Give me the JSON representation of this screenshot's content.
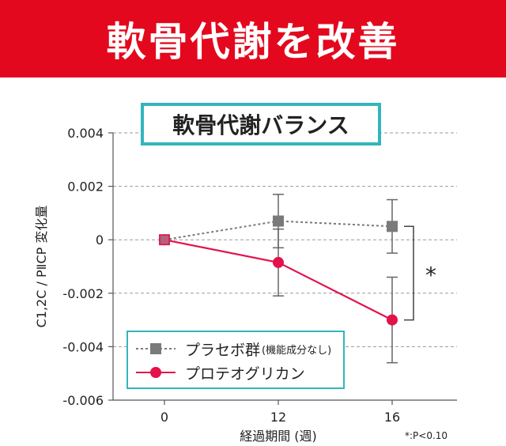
{
  "header": {
    "title": "軟骨代謝を改善"
  },
  "chart_data": {
    "type": "line",
    "title": "軟骨代謝バランス",
    "xlabel": "経過期間 (週)",
    "ylabel": "C1,2C / PⅡCP 変化量",
    "x": [
      0,
      12,
      16
    ],
    "x_ticks": [
      "0",
      "12",
      "16"
    ],
    "y_ticks": [
      "0.004",
      "0.002",
      "0",
      "-0.002",
      "-0.004",
      "-0.006"
    ],
    "ylim": [
      -0.006,
      0.004
    ],
    "grid": true,
    "legend_position": "bottom-left",
    "series": [
      {
        "name": "プラセボ群",
        "name_note": "(機能成分なし)",
        "color": "#7a7a7a",
        "line_style": "dotted",
        "marker": "square",
        "values": [
          0,
          0.0007,
          0.0005
        ],
        "error": [
          0,
          0.001,
          0.001
        ]
      },
      {
        "name": "プロテオグリカン",
        "color": "#e3124b",
        "line_style": "solid",
        "marker": "circle",
        "values": [
          0,
          -0.00085,
          -0.003
        ],
        "error": [
          0,
          0.00125,
          0.0016
        ]
      }
    ],
    "significance": {
      "x": 16,
      "label": "*"
    },
    "footnote": "*:P<0.10"
  }
}
